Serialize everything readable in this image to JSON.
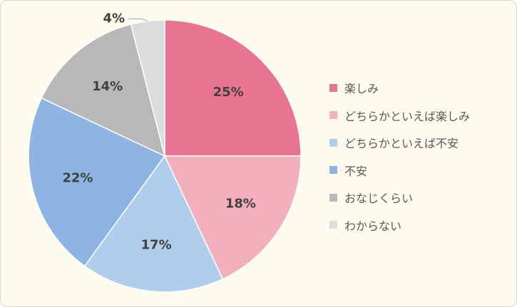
{
  "chart_data": {
    "type": "pie",
    "categories": [
      "楽しみ",
      "どちらかといえば楽しみ",
      "どちらかといえば不安",
      "不安",
      "おなじくらい",
      "わからない"
    ],
    "values": [
      25,
      18,
      17,
      22,
      14,
      4
    ],
    "labels": [
      "25%",
      "18%",
      "17%",
      "22%",
      "14%",
      "4%"
    ],
    "colors": [
      "#e8748f",
      "#f2b0be",
      "#b0cdeb",
      "#8db4e2",
      "#b8b8b8",
      "#dcdcdc"
    ],
    "legend_position": "right",
    "start_angle": "12 o'clock",
    "direction": "clockwise"
  }
}
